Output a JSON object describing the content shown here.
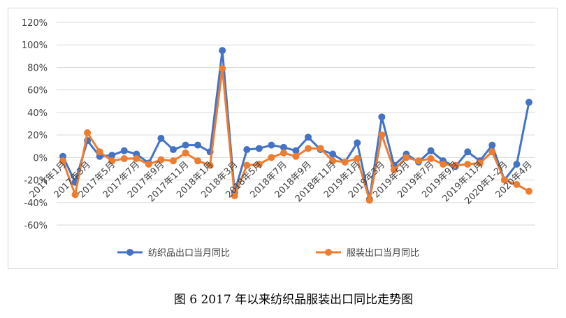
{
  "chart_data": {
    "type": "line",
    "categories": [
      "2017年1月",
      null,
      "2017年3月",
      null,
      "2017年5月",
      null,
      "2017年7月",
      null,
      "2017年9月",
      null,
      "2017年11月",
      null,
      "2018年1月",
      null,
      "2018年3月",
      null,
      "2018年5月",
      null,
      "2018年7月",
      null,
      "2018年9月",
      null,
      "2018年11月",
      null,
      "2019年1月",
      null,
      "2019年3月",
      null,
      "2019年5月",
      null,
      "2019年7月",
      null,
      "2019年9月",
      null,
      "2019年11月",
      null,
      "2020年1-2月",
      null,
      "2020年4月"
    ],
    "series": [
      {
        "name": "纺织品出口当月同比",
        "color": "#4472c4",
        "values": [
          1,
          -22,
          15,
          1,
          2,
          6,
          3,
          -5,
          17,
          7,
          11,
          11,
          5,
          95,
          -31,
          7,
          8,
          11,
          9,
          6,
          18,
          7,
          3,
          -4,
          13,
          -37,
          36,
          -7,
          3,
          -4,
          6,
          -3,
          -8,
          5,
          -3,
          11,
          -20,
          -6,
          49
        ]
      },
      {
        "name": "服装出口当月同比",
        "color": "#ed7d31",
        "values": [
          -3,
          -33,
          22,
          5,
          -3,
          -1,
          -1,
          -6,
          -2,
          -3,
          4,
          -3,
          -7,
          79,
          -34,
          -7,
          -6,
          0,
          4,
          1,
          8,
          8,
          -3,
          -4,
          -1,
          -38,
          20,
          -11,
          0,
          -3,
          -1,
          -6,
          -7,
          -6,
          -5,
          5,
          -20,
          -24,
          -30
        ]
      }
    ],
    "ylim": [
      -60,
      120
    ],
    "yticks": [
      {
        "value": -60,
        "label": "-60%"
      },
      {
        "value": -40,
        "label": "-40%"
      },
      {
        "value": -20,
        "label": "-20%"
      },
      {
        "value": 0,
        "label": "0%"
      },
      {
        "value": 20,
        "label": "20%"
      },
      {
        "value": 40,
        "label": "40%"
      },
      {
        "value": 60,
        "label": "60%"
      },
      {
        "value": 80,
        "label": "80%"
      },
      {
        "value": 100,
        "label": "100%"
      },
      {
        "value": 120,
        "label": "120%"
      }
    ],
    "grid": true,
    "legend": "bottom"
  },
  "caption": "图 6 2017 年以来纺织品服装出口同比走势图"
}
